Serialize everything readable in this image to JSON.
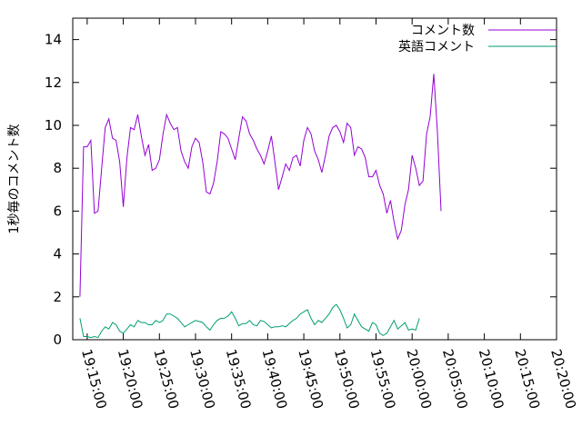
{
  "chart_data": {
    "type": "line",
    "title": "",
    "xlabel": "",
    "ylabel": "1秒毎のコメント数",
    "ylim": [
      0,
      15
    ],
    "yticks": [
      0,
      2,
      4,
      6,
      8,
      10,
      12,
      14
    ],
    "xlim": [
      "19:13:00",
      "20:20:00"
    ],
    "xticks": [
      "19:15:00",
      "19:20:00",
      "19:25:00",
      "19:30:00",
      "19:35:00",
      "19:40:00",
      "19:45:00",
      "19:50:00",
      "19:55:00",
      "20:00:00",
      "20:05:00",
      "20:10:00",
      "20:15:00",
      "20:20:00"
    ],
    "grid": false,
    "legend": "top-right",
    "series": [
      {
        "name": "コメント数",
        "color": "#9400d3",
        "points": [
          [
            "19:14:00",
            2.0
          ],
          [
            "19:14:30",
            9.0
          ],
          [
            "19:15:00",
            9.0
          ],
          [
            "19:15:30",
            9.3
          ],
          [
            "19:16:00",
            5.9
          ],
          [
            "19:16:30",
            6.0
          ],
          [
            "19:17:00",
            8.0
          ],
          [
            "19:17:30",
            9.9
          ],
          [
            "19:18:00",
            10.3
          ],
          [
            "19:18:30",
            9.4
          ],
          [
            "19:19:00",
            9.3
          ],
          [
            "19:19:30",
            8.3
          ],
          [
            "19:20:00",
            6.2
          ],
          [
            "19:20:30",
            8.5
          ],
          [
            "19:21:00",
            9.9
          ],
          [
            "19:21:30",
            9.8
          ],
          [
            "19:22:00",
            10.5
          ],
          [
            "19:22:30",
            9.5
          ],
          [
            "19:23:00",
            8.6
          ],
          [
            "19:23:30",
            9.1
          ],
          [
            "19:24:00",
            7.9
          ],
          [
            "19:24:30",
            8.0
          ],
          [
            "19:25:00",
            8.4
          ],
          [
            "19:25:30",
            9.6
          ],
          [
            "19:26:00",
            10.5
          ],
          [
            "19:26:30",
            10.1
          ],
          [
            "19:27:00",
            9.8
          ],
          [
            "19:27:30",
            9.9
          ],
          [
            "19:28:00",
            8.8
          ],
          [
            "19:28:30",
            8.3
          ],
          [
            "19:29:00",
            8.0
          ],
          [
            "19:29:30",
            9.0
          ],
          [
            "19:30:00",
            9.4
          ],
          [
            "19:30:30",
            9.2
          ],
          [
            "19:31:00",
            8.3
          ],
          [
            "19:31:30",
            6.9
          ],
          [
            "19:32:00",
            6.8
          ],
          [
            "19:32:30",
            7.3
          ],
          [
            "19:33:00",
            8.3
          ],
          [
            "19:33:30",
            9.7
          ],
          [
            "19:34:00",
            9.6
          ],
          [
            "19:34:30",
            9.4
          ],
          [
            "19:35:00",
            8.9
          ],
          [
            "19:35:30",
            8.4
          ],
          [
            "19:36:00",
            9.4
          ],
          [
            "19:36:30",
            10.4
          ],
          [
            "19:37:00",
            10.2
          ],
          [
            "19:37:30",
            9.6
          ],
          [
            "19:38:00",
            9.3
          ],
          [
            "19:38:30",
            8.9
          ],
          [
            "19:39:00",
            8.6
          ],
          [
            "19:39:30",
            8.2
          ],
          [
            "19:40:00",
            8.8
          ],
          [
            "19:40:30",
            9.5
          ],
          [
            "19:41:00",
            8.3
          ],
          [
            "19:41:30",
            7.0
          ],
          [
            "19:42:00",
            7.6
          ],
          [
            "19:42:30",
            8.2
          ],
          [
            "19:43:00",
            7.9
          ],
          [
            "19:43:30",
            8.5
          ],
          [
            "19:44:00",
            8.6
          ],
          [
            "19:44:30",
            8.1
          ],
          [
            "19:45:00",
            9.3
          ],
          [
            "19:45:30",
            9.9
          ],
          [
            "19:46:00",
            9.6
          ],
          [
            "19:46:30",
            8.8
          ],
          [
            "19:47:00",
            8.4
          ],
          [
            "19:47:30",
            7.8
          ],
          [
            "19:48:00",
            8.6
          ],
          [
            "19:48:30",
            9.5
          ],
          [
            "19:49:00",
            9.9
          ],
          [
            "19:49:30",
            10.0
          ],
          [
            "19:50:00",
            9.7
          ],
          [
            "19:50:30",
            9.2
          ],
          [
            "19:51:00",
            10.1
          ],
          [
            "19:51:30",
            9.9
          ],
          [
            "19:52:00",
            8.6
          ],
          [
            "19:52:30",
            9.0
          ],
          [
            "19:53:00",
            8.9
          ],
          [
            "19:53:30",
            8.5
          ],
          [
            "19:54:00",
            7.6
          ],
          [
            "19:54:30",
            7.6
          ],
          [
            "19:55:00",
            7.9
          ],
          [
            "19:55:30",
            7.2
          ],
          [
            "19:56:00",
            6.8
          ],
          [
            "19:56:30",
            5.9
          ],
          [
            "19:57:00",
            6.5
          ],
          [
            "19:57:30",
            5.5
          ],
          [
            "19:58:00",
            4.7
          ],
          [
            "19:58:30",
            5.1
          ],
          [
            "19:59:00",
            6.3
          ],
          [
            "19:59:30",
            7.0
          ],
          [
            "20:00:00",
            8.6
          ],
          [
            "20:00:30",
            8.0
          ],
          [
            "20:01:00",
            7.2
          ],
          [
            "20:01:30",
            7.4
          ],
          [
            "20:02:00",
            9.6
          ],
          [
            "20:02:30",
            10.4
          ],
          [
            "20:03:00",
            12.4
          ],
          [
            "20:03:30",
            9.7
          ],
          [
            "20:04:00",
            6.0
          ]
        ]
      },
      {
        "name": "英語コメント",
        "color": "#009e73",
        "points": [
          [
            "19:14:00",
            1.0
          ],
          [
            "19:14:30",
            0.15
          ],
          [
            "19:15:00",
            0.15
          ],
          [
            "19:15:30",
            0.1
          ],
          [
            "19:16:00",
            0.15
          ],
          [
            "19:16:30",
            0.1
          ],
          [
            "19:17:00",
            0.4
          ],
          [
            "19:17:30",
            0.6
          ],
          [
            "19:18:00",
            0.5
          ],
          [
            "19:18:30",
            0.8
          ],
          [
            "19:19:00",
            0.7
          ],
          [
            "19:19:30",
            0.4
          ],
          [
            "19:20:00",
            0.3
          ],
          [
            "19:20:30",
            0.5
          ],
          [
            "19:21:00",
            0.7
          ],
          [
            "19:21:30",
            0.6
          ],
          [
            "19:22:00",
            0.9
          ],
          [
            "19:22:30",
            0.8
          ],
          [
            "19:23:00",
            0.8
          ],
          [
            "19:23:30",
            0.7
          ],
          [
            "19:24:00",
            0.7
          ],
          [
            "19:24:30",
            0.9
          ],
          [
            "19:25:00",
            0.8
          ],
          [
            "19:25:30",
            0.9
          ],
          [
            "19:26:00",
            1.2
          ],
          [
            "19:26:30",
            1.2
          ],
          [
            "19:27:00",
            1.1
          ],
          [
            "19:27:30",
            1.0
          ],
          [
            "19:28:00",
            0.8
          ],
          [
            "19:28:30",
            0.6
          ],
          [
            "19:29:00",
            0.7
          ],
          [
            "19:29:30",
            0.8
          ],
          [
            "19:30:00",
            0.9
          ],
          [
            "19:30:30",
            0.85
          ],
          [
            "19:31:00",
            0.8
          ],
          [
            "19:31:30",
            0.6
          ],
          [
            "19:32:00",
            0.45
          ],
          [
            "19:32:30",
            0.7
          ],
          [
            "19:33:00",
            0.9
          ],
          [
            "19:33:30",
            1.0
          ],
          [
            "19:34:00",
            1.0
          ],
          [
            "19:34:30",
            1.1
          ],
          [
            "19:35:00",
            1.3
          ],
          [
            "19:35:30",
            1.0
          ],
          [
            "19:36:00",
            0.65
          ],
          [
            "19:36:30",
            0.75
          ],
          [
            "19:37:00",
            0.75
          ],
          [
            "19:37:30",
            0.9
          ],
          [
            "19:38:00",
            0.7
          ],
          [
            "19:38:30",
            0.65
          ],
          [
            "19:39:00",
            0.9
          ],
          [
            "19:39:30",
            0.85
          ],
          [
            "19:40:00",
            0.7
          ],
          [
            "19:40:30",
            0.55
          ],
          [
            "19:41:00",
            0.6
          ],
          [
            "19:41:30",
            0.6
          ],
          [
            "19:42:00",
            0.65
          ],
          [
            "19:42:30",
            0.6
          ],
          [
            "19:43:00",
            0.75
          ],
          [
            "19:43:30",
            0.9
          ],
          [
            "19:44:00",
            1.0
          ],
          [
            "19:44:30",
            1.2
          ],
          [
            "19:45:00",
            1.3
          ],
          [
            "19:45:30",
            1.4
          ],
          [
            "19:46:00",
            1.0
          ],
          [
            "19:46:30",
            0.7
          ],
          [
            "19:47:00",
            0.9
          ],
          [
            "19:47:30",
            0.8
          ],
          [
            "19:48:00",
            1.0
          ],
          [
            "19:48:30",
            1.2
          ],
          [
            "19:49:00",
            1.5
          ],
          [
            "19:49:30",
            1.65
          ],
          [
            "19:50:00",
            1.4
          ],
          [
            "19:50:30",
            1.0
          ],
          [
            "19:51:00",
            0.55
          ],
          [
            "19:51:30",
            0.7
          ],
          [
            "19:52:00",
            1.2
          ],
          [
            "19:52:30",
            0.9
          ],
          [
            "19:53:00",
            0.6
          ],
          [
            "19:53:30",
            0.5
          ],
          [
            "19:54:00",
            0.4
          ],
          [
            "19:54:30",
            0.8
          ],
          [
            "19:55:00",
            0.7
          ],
          [
            "19:55:30",
            0.3
          ],
          [
            "19:56:00",
            0.2
          ],
          [
            "19:56:30",
            0.3
          ],
          [
            "19:57:00",
            0.6
          ],
          [
            "19:57:30",
            0.9
          ],
          [
            "19:58:00",
            0.5
          ],
          [
            "19:58:30",
            0.65
          ],
          [
            "19:59:00",
            0.8
          ],
          [
            "19:59:30",
            0.45
          ],
          [
            "20:00:00",
            0.5
          ],
          [
            "20:00:30",
            0.45
          ],
          [
            "20:01:00",
            1.0
          ]
        ]
      }
    ]
  }
}
